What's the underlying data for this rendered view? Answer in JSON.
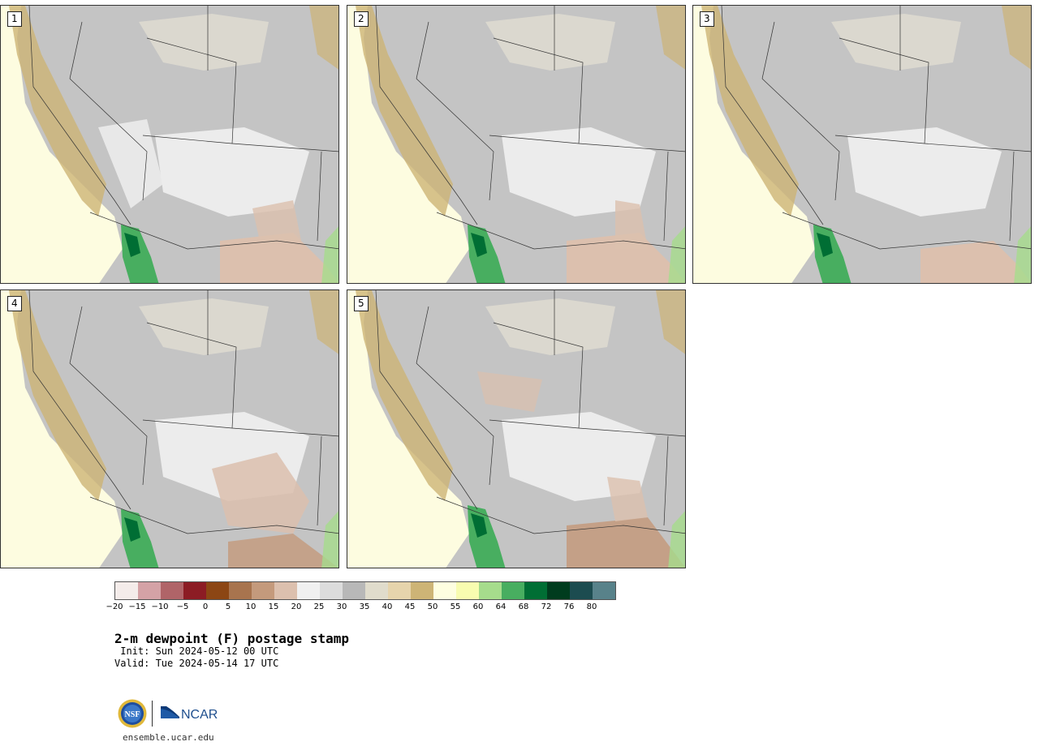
{
  "panels": [
    {
      "label": "1"
    },
    {
      "label": "2"
    },
    {
      "label": "3"
    },
    {
      "label": "4"
    },
    {
      "label": "5"
    }
  ],
  "colorbar": {
    "colors": [
      "#f4ecea",
      "#d4a2a6",
      "#b06468",
      "#8c1c24",
      "#8c4614",
      "#a8744e",
      "#c49a7c",
      "#dcc0ae",
      "#f0f0f0",
      "#dcdcdc",
      "#b8b8b8",
      "#e0dccc",
      "#e6d4ac",
      "#cdb476",
      "#fefee0",
      "#f8fcb0",
      "#a6dc8c",
      "#48ae60",
      "#006e34",
      "#003c1e",
      "#1c4c50",
      "#58828a"
    ],
    "ticks": [
      "−20",
      "−15",
      "−10",
      "−5",
      "0",
      "5",
      "10",
      "15",
      "20",
      "25",
      "30",
      "35",
      "40",
      "45",
      "50",
      "55",
      "60",
      "64",
      "68",
      "72",
      "76",
      "80"
    ]
  },
  "title": "2-m dewpoint (F) postage stamp",
  "init": " Init: Sun 2024-05-12 00 UTC",
  "valid": "Valid: Tue 2024-05-14 17 UTC",
  "logos": {
    "nsf": "NSF",
    "ncar": "NCAR"
  },
  "site": "ensemble.ucar.edu"
}
